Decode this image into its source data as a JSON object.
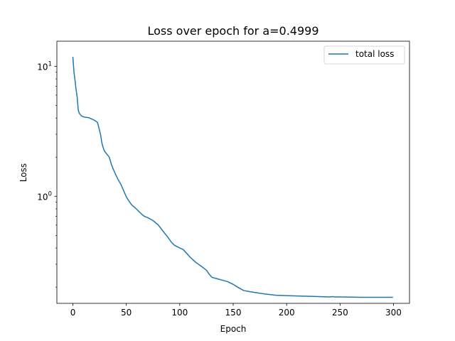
{
  "chart_data": {
    "type": "line",
    "title": "Loss over epoch for a=0.4999",
    "xlabel": "Epoch",
    "ylabel": "Loss",
    "xlim": [
      -15,
      315
    ],
    "ylim": [
      0.15,
      15.6
    ],
    "yscale": "log",
    "grid": false,
    "legend_position": "top-right",
    "x_ticks": [
      0,
      50,
      100,
      150,
      200,
      250,
      300
    ],
    "x_tick_labels": [
      "0",
      "50",
      "100",
      "150",
      "200",
      "250",
      "300"
    ],
    "y_ticks": [
      1,
      10
    ],
    "y_tick_labels": [
      {
        "base": "10",
        "exp": "0"
      },
      {
        "base": "10",
        "exp": "1"
      }
    ],
    "series": [
      {
        "name": "total loss",
        "color": "#1f77b4",
        "x": [
          0,
          1,
          2,
          3,
          4,
          5,
          6,
          7,
          8,
          10,
          12,
          15,
          20,
          23,
          25,
          26,
          27,
          28,
          29,
          30,
          32,
          34,
          35,
          36,
          38,
          40,
          42,
          45,
          48,
          50,
          52,
          55,
          60,
          65,
          67,
          70,
          75,
          80,
          85,
          88,
          90,
          92,
          95,
          100,
          103,
          105,
          107,
          110,
          115,
          120,
          125,
          127,
          130,
          135,
          140,
          145,
          150,
          155,
          160,
          165,
          170,
          180,
          185,
          190,
          200,
          210,
          220,
          230,
          240,
          243,
          245,
          250,
          260,
          270,
          280,
          290,
          299
        ],
        "y": [
          11.7,
          9.0,
          7.8,
          6.6,
          5.8,
          4.6,
          4.35,
          4.25,
          4.15,
          4.08,
          4.05,
          4.02,
          3.85,
          3.7,
          3.2,
          2.95,
          2.6,
          2.42,
          2.28,
          2.2,
          2.1,
          2.0,
          1.88,
          1.76,
          1.6,
          1.47,
          1.36,
          1.23,
          1.08,
          0.99,
          0.93,
          0.86,
          0.79,
          0.72,
          0.7,
          0.685,
          0.65,
          0.6,
          0.53,
          0.495,
          0.47,
          0.445,
          0.42,
          0.4,
          0.39,
          0.375,
          0.36,
          0.338,
          0.31,
          0.29,
          0.27,
          0.255,
          0.238,
          0.232,
          0.226,
          0.22,
          0.21,
          0.198,
          0.188,
          0.185,
          0.182,
          0.177,
          0.175,
          0.173,
          0.172,
          0.171,
          0.17,
          0.169,
          0.168,
          0.169,
          0.168,
          0.168,
          0.1675,
          0.167,
          0.167,
          0.167,
          0.167
        ]
      }
    ]
  }
}
